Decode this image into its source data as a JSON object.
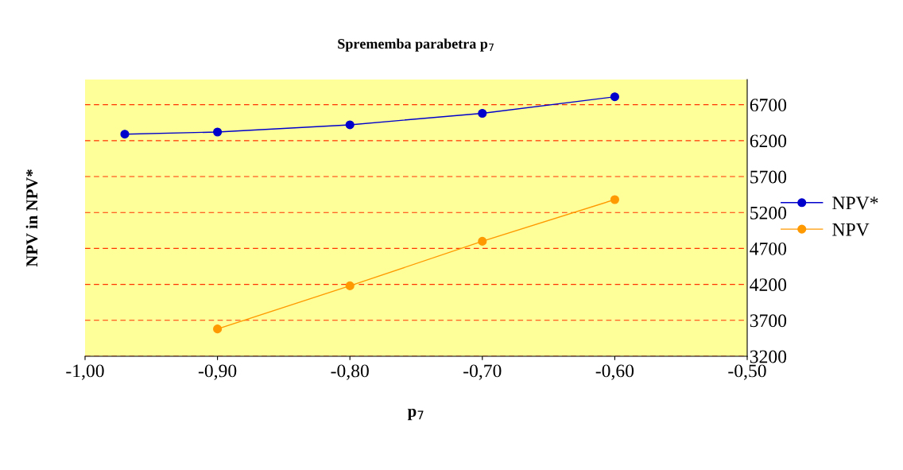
{
  "chart_data": {
    "type": "line",
    "title": "Sprememba parabetra p$_{7}$",
    "xlabel": "p$_{7}$",
    "ylabel": "NPV in NPV*",
    "x": [
      -0.97,
      -0.9,
      -0.8,
      -0.7,
      -0.6
    ],
    "series": [
      {
        "name": "NPV*",
        "color": "#0000cc",
        "values": [
          6290,
          6320,
          6420,
          6580,
          6810
        ]
      },
      {
        "name": "NPV",
        "color": "#ff9900",
        "values": [
          null,
          3580,
          4180,
          4800,
          5380
        ]
      }
    ],
    "xlim": [
      -1.0,
      -0.5
    ],
    "xticks": [
      {
        "value": -1.0,
        "label": "-1,00"
      },
      {
        "value": -0.9,
        "label": "-0,90"
      },
      {
        "value": -0.8,
        "label": "-0,80"
      },
      {
        "value": -0.7,
        "label": "-0,70"
      },
      {
        "value": -0.6,
        "label": "-0,60"
      },
      {
        "value": -0.5,
        "label": "-0,50"
      }
    ],
    "ylim": [
      3200,
      7050
    ],
    "yticks": [
      3200,
      3700,
      4200,
      4700,
      5200,
      5700,
      6200,
      6700
    ],
    "grid": "y",
    "legend": "right",
    "marker": "circle",
    "line_style": "solid"
  }
}
